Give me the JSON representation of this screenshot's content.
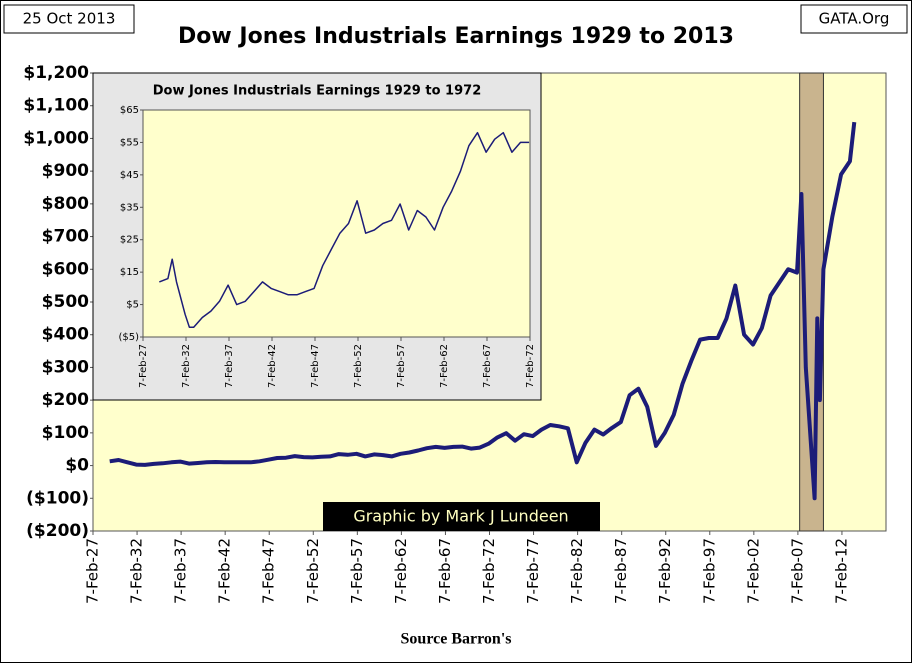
{
  "chart_data": [
    {
      "type": "line",
      "title": "Dow Jones Industrials Earnings 1929 to 2013",
      "xlabel": "Source Barron's",
      "annotations": [
        "25 Oct 2013",
        "GATA.Org",
        "Graphic by Mark J Lundeen"
      ],
      "color": "#1c1c78",
      "highlight_x": [
        2007.3,
        2010.0
      ],
      "x": [
        1929,
        1930,
        1931,
        1932,
        1933,
        1934,
        1935,
        1936,
        1937,
        1938,
        1939,
        1940,
        1941,
        1942,
        1943,
        1944,
        1945,
        1946,
        1947,
        1948,
        1949,
        1950,
        1951,
        1952,
        1953,
        1954,
        1955,
        1956,
        1957,
        1958,
        1959,
        1960,
        1961,
        1962,
        1963,
        1964,
        1965,
        1966,
        1967,
        1968,
        1969,
        1970,
        1971,
        1972,
        1973,
        1974,
        1975,
        1976,
        1977,
        1978,
        1979,
        1980,
        1981,
        1982,
        1983,
        1984,
        1985,
        1986,
        1987,
        1988,
        1989,
        1990,
        1991,
        1992,
        1993,
        1994,
        1995,
        1996,
        1997,
        1998,
        1999,
        2000,
        2001,
        2002,
        2003,
        2004,
        2005,
        2006,
        2007,
        2007.5,
        2008,
        2008.5,
        2009,
        2009.3,
        2009.6,
        2010,
        2011,
        2012,
        2013,
        2013.5
      ],
      "values": [
        13,
        17,
        10,
        3,
        2,
        5,
        7,
        10,
        12,
        6,
        8,
        10,
        11,
        10,
        10,
        10,
        10,
        13,
        18,
        23,
        24,
        29,
        26,
        25,
        27,
        28,
        35,
        33,
        36,
        28,
        34,
        32,
        28,
        36,
        40,
        46,
        53,
        57,
        54,
        57,
        58,
        52,
        55,
        67,
        86,
        99,
        76,
        96,
        90,
        110,
        124,
        120,
        114,
        10,
        70,
        110,
        95,
        115,
        133,
        215,
        235,
        180,
        60,
        100,
        155,
        250,
        320,
        385,
        390,
        390,
        450,
        550,
        400,
        370,
        420,
        520,
        560,
        600,
        590,
        830,
        300,
        100,
        -100,
        450,
        200,
        600,
        760,
        890,
        930,
        1050
      ],
      "xlim": [
        1927.1,
        2017.1
      ],
      "xticks": [
        {
          "value": 1927.1,
          "label": "7-Feb-27"
        },
        {
          "value": 1932.1,
          "label": "7-Feb-32"
        },
        {
          "value": 1937.1,
          "label": "7-Feb-37"
        },
        {
          "value": 1942.1,
          "label": "7-Feb-42"
        },
        {
          "value": 1947.1,
          "label": "7-Feb-47"
        },
        {
          "value": 1952.1,
          "label": "7-Feb-52"
        },
        {
          "value": 1957.1,
          "label": "7-Feb-57"
        },
        {
          "value": 1962.1,
          "label": "7-Feb-62"
        },
        {
          "value": 1967.1,
          "label": "7-Feb-67"
        },
        {
          "value": 1972.1,
          "label": "7-Feb-72"
        },
        {
          "value": 1977.1,
          "label": "7-Feb-77"
        },
        {
          "value": 1982.1,
          "label": "7-Feb-82"
        },
        {
          "value": 1987.1,
          "label": "7-Feb-87"
        },
        {
          "value": 1992.1,
          "label": "7-Feb-92"
        },
        {
          "value": 1997.1,
          "label": "7-Feb-97"
        },
        {
          "value": 2002.1,
          "label": "7-Feb-02"
        },
        {
          "value": 2007.1,
          "label": "7-Feb-07"
        },
        {
          "value": 2012.1,
          "label": "7-Feb-12"
        }
      ],
      "ylim": [
        -200,
        1200
      ],
      "yticks": [
        {
          "value": -200,
          "label": "($200)"
        },
        {
          "value": -100,
          "label": "($100)"
        },
        {
          "value": 0,
          "label": "$0"
        },
        {
          "value": 100,
          "label": "$100"
        },
        {
          "value": 200,
          "label": "$200"
        },
        {
          "value": 300,
          "label": "$300"
        },
        {
          "value": 400,
          "label": "$400"
        },
        {
          "value": 500,
          "label": "$500"
        },
        {
          "value": 600,
          "label": "$600"
        },
        {
          "value": 700,
          "label": "$700"
        },
        {
          "value": 800,
          "label": "$800"
        },
        {
          "value": 900,
          "label": "$900"
        },
        {
          "value": 1000,
          "label": "$1,000"
        },
        {
          "value": 1100,
          "label": "$1,100"
        },
        {
          "value": 1200,
          "label": "$1,200"
        }
      ],
      "grid": false
    },
    {
      "type": "line",
      "title": "Dow Jones Industrials Earnings 1929 to 1972",
      "color": "#1c1c78",
      "x": [
        1929,
        1930,
        1930.5,
        1931,
        1932,
        1932.5,
        1933,
        1934,
        1935,
        1936,
        1937,
        1938,
        1939,
        1940,
        1941,
        1942,
        1943,
        1944,
        1945,
        1946,
        1947,
        1948,
        1949,
        1950,
        1951,
        1952,
        1953,
        1954,
        1955,
        1956,
        1957,
        1958,
        1959,
        1960,
        1961,
        1962,
        1963,
        1964,
        1965,
        1966,
        1967,
        1968,
        1969,
        1970,
        1971,
        1972
      ],
      "values": [
        12,
        13,
        19,
        12,
        2,
        -2,
        -2,
        1,
        3,
        6,
        11,
        5,
        6,
        9,
        12,
        10,
        9,
        8,
        8,
        9,
        10,
        17,
        22,
        27,
        30,
        37,
        27,
        28,
        30,
        31,
        36,
        28,
        34,
        32,
        28,
        35,
        40,
        46,
        54,
        58,
        52,
        56,
        58,
        52,
        55,
        55
      ],
      "xlim": [
        1927.1,
        1972.1
      ],
      "xticks": [
        {
          "value": 1927.1,
          "label": "7-Feb-27"
        },
        {
          "value": 1932.1,
          "label": "7-Feb-32"
        },
        {
          "value": 1937.1,
          "label": "7-Feb-37"
        },
        {
          "value": 1942.1,
          "label": "7-Feb-42"
        },
        {
          "value": 1947.1,
          "label": "7-Feb-47"
        },
        {
          "value": 1952.1,
          "label": "7-Feb-52"
        },
        {
          "value": 1957.1,
          "label": "7-Feb-57"
        },
        {
          "value": 1962.1,
          "label": "7-Feb-62"
        },
        {
          "value": 1967.1,
          "label": "7-Feb-67"
        },
        {
          "value": 1972.1,
          "label": "7-Feb-72"
        }
      ],
      "ylim": [
        -5,
        65
      ],
      "yticks": [
        {
          "value": -5,
          "label": "($5)"
        },
        {
          "value": 5,
          "label": "$5"
        },
        {
          "value": 15,
          "label": "$15"
        },
        {
          "value": 25,
          "label": "$25"
        },
        {
          "value": 35,
          "label": "$35"
        },
        {
          "value": 45,
          "label": "$45"
        },
        {
          "value": 55,
          "label": "$55"
        },
        {
          "value": 65,
          "label": "$65"
        }
      ],
      "grid": false
    }
  ]
}
